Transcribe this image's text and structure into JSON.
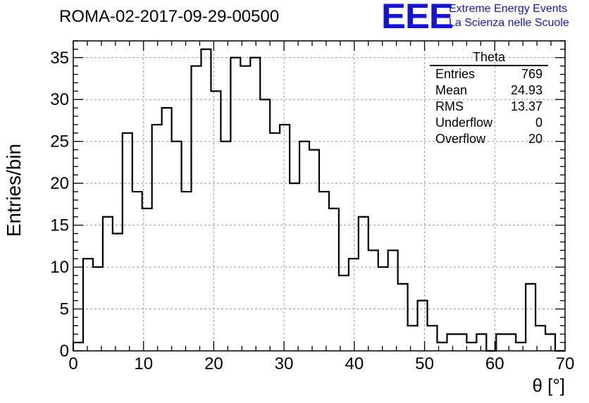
{
  "title": "ROMA-02-2017-09-29-00500",
  "logo": {
    "mark": "EEE",
    "line1": "Extreme Energy Events",
    "line2": "La Scienza nelle Scuole"
  },
  "stats": {
    "name": "Theta",
    "rows": [
      {
        "label": "Entries",
        "value": "769"
      },
      {
        "label": "Mean",
        "value": "24.93"
      },
      {
        "label": "RMS",
        "value": "13.37"
      },
      {
        "label": "Underflow",
        "value": "0"
      },
      {
        "label": "Overflow",
        "value": "20"
      }
    ]
  },
  "chart_data": {
    "type": "histogram",
    "xlabel": "θ [°]",
    "ylabel": "Entries/bin",
    "xlim": [
      0,
      70
    ],
    "ylim": [
      0,
      37
    ],
    "xticks": [
      0,
      10,
      20,
      30,
      40,
      50,
      60,
      70
    ],
    "yticks": [
      0,
      5,
      10,
      15,
      20,
      25,
      30,
      35
    ],
    "grid": true,
    "bin_width": 1.4,
    "values": [
      1,
      11,
      10,
      16,
      14,
      26,
      19,
      17,
      27,
      29,
      25,
      19,
      34,
      36,
      31,
      25,
      35,
      34,
      35,
      30,
      26,
      27,
      20,
      25,
      24,
      19,
      17,
      9,
      11,
      16,
      12,
      10,
      12,
      8,
      3,
      6,
      3,
      1,
      2,
      2,
      1,
      2,
      0,
      2,
      2,
      1,
      8,
      3,
      2,
      0
    ]
  }
}
